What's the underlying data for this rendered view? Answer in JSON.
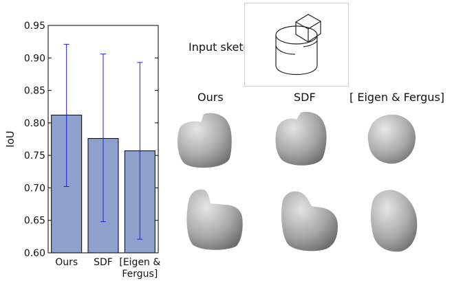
{
  "chart_data": {
    "type": "bar",
    "ylabel": "IoU",
    "ylim": [
      0.6,
      0.95
    ],
    "yticks": [
      "0.60",
      "0.65",
      "0.70",
      "0.75",
      "0.80",
      "0.85",
      "0.90",
      "0.95"
    ],
    "categories": [
      "Ours",
      "SDF",
      "[Eigen & Fergus]"
    ],
    "category_label_lines": [
      [
        "Ours"
      ],
      [
        "SDF"
      ],
      [
        "[Eigen &",
        "Fergus]"
      ]
    ],
    "values": [
      0.812,
      0.776,
      0.757
    ],
    "error_low": [
      0.702,
      0.648,
      0.621
    ],
    "error_high": [
      0.921,
      0.906,
      0.893
    ],
    "bar_color": "#8ea0cc",
    "error_color": "#1f1fd6",
    "grid": false
  },
  "figure": {
    "input_label": "Input sketch",
    "columns": [
      "Ours",
      "SDF",
      "[ Eigen & Fergus]"
    ]
  }
}
